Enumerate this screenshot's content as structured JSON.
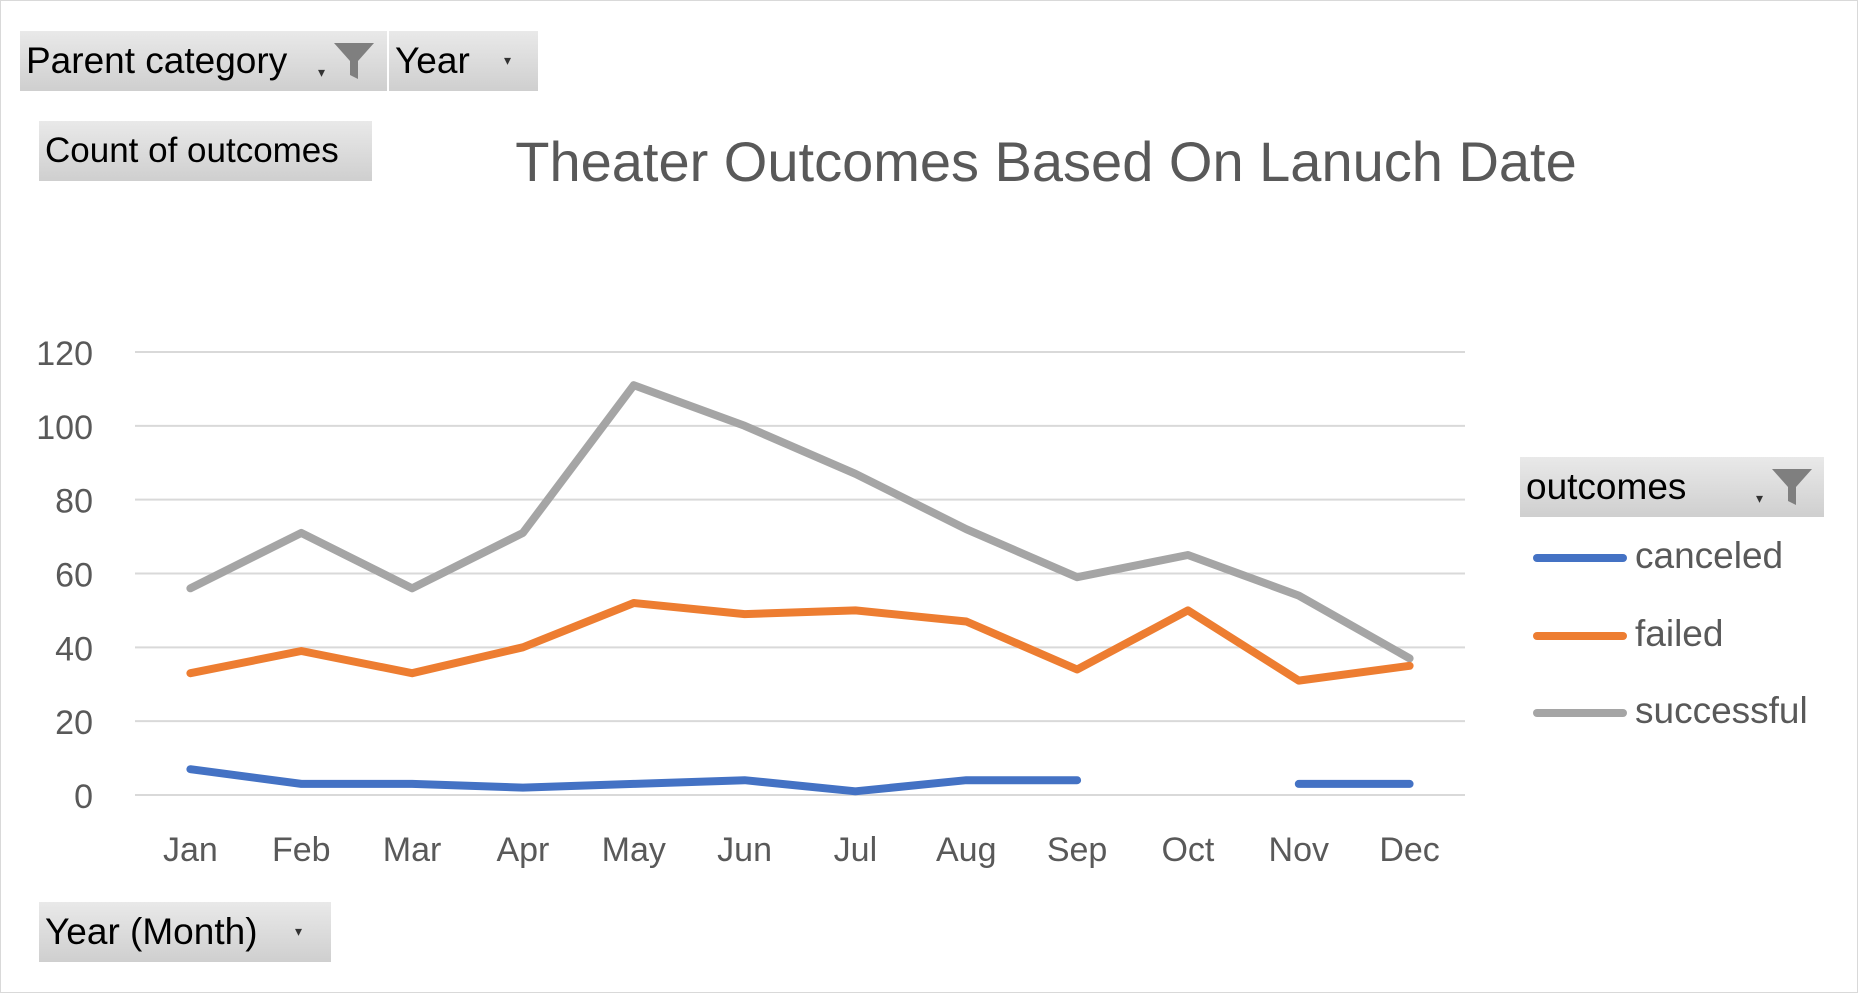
{
  "filters": {
    "parent_category_label": "Parent category",
    "year_label": "Year",
    "count_label": "Count of outcomes",
    "year_month_label": "Year (Month)",
    "outcomes_label": "outcomes"
  },
  "colors": {
    "canceled": "#4472C4",
    "failed": "#ED7D31",
    "successful": "#A5A5A5",
    "text": "#595959",
    "grid": "#d9d9d9"
  },
  "chart_data": {
    "type": "line",
    "title": "Theater Outcomes Based On Lanuch Date",
    "xlabel": "",
    "ylabel": "",
    "categories": [
      "Jan",
      "Feb",
      "Mar",
      "Apr",
      "May",
      "Jun",
      "Jul",
      "Aug",
      "Sep",
      "Oct",
      "Nov",
      "Dec"
    ],
    "ylim": [
      0,
      120
    ],
    "yticks": [
      0,
      20,
      40,
      60,
      80,
      100,
      120
    ],
    "grid": true,
    "legend_position": "right",
    "series": [
      {
        "name": "canceled",
        "color": "#4472C4",
        "values": [
          7,
          3,
          3,
          2,
          3,
          4,
          1,
          4,
          4,
          null,
          3,
          3
        ]
      },
      {
        "name": "failed",
        "color": "#ED7D31",
        "values": [
          33,
          39,
          33,
          40,
          52,
          49,
          50,
          47,
          34,
          50,
          31,
          35
        ]
      },
      {
        "name": "successful",
        "color": "#A5A5A5",
        "values": [
          56,
          71,
          56,
          71,
          111,
          100,
          87,
          72,
          59,
          65,
          54,
          37
        ]
      }
    ]
  }
}
